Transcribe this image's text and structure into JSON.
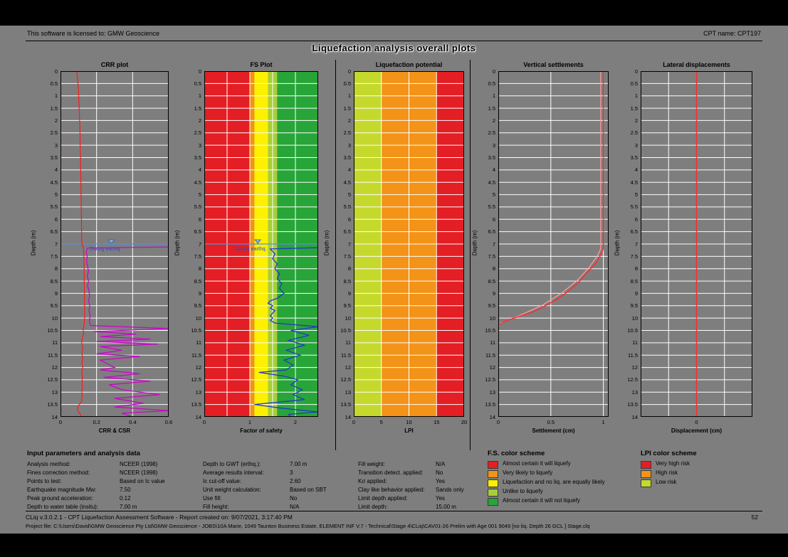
{
  "header": {
    "license_text": "This software is licensed to: GMW Geoscience",
    "cpt_name": "CPT name: CPT197",
    "title": "Liquefaction analysis overall plots"
  },
  "chart_data": [
    {
      "name": "crr-plot",
      "type": "line",
      "title": "CRR plot",
      "xlabel": "CRR & CSR",
      "ylabel": "Depth (m)",
      "xlim": [
        0,
        0.6
      ],
      "xticks": [
        0,
        0.2,
        0.4,
        0.6
      ],
      "xgrid": [
        0.2,
        0.4
      ],
      "ylim": [
        0,
        14
      ],
      "ytick_step": 0.5,
      "grid": "on",
      "water_table": {
        "depth": 7,
        "label": "During earthq.",
        "color": "#5b8fd4",
        "label_color": "#1d4ed0"
      },
      "series": [
        {
          "name": "CSR",
          "color": "#ff1a1a",
          "width": 1.2,
          "points": [
            [
              0,
              0.09
            ],
            [
              0.4,
              0.096
            ],
            [
              0.8,
              0.1
            ],
            [
              1.2,
              0.102
            ],
            [
              1.6,
              0.104
            ],
            [
              2,
              0.106
            ],
            [
              2.5,
              0.108
            ],
            [
              3,
              0.109
            ],
            [
              3.5,
              0.111
            ],
            [
              4,
              0.112
            ],
            [
              4.5,
              0.113
            ],
            [
              5,
              0.114
            ],
            [
              5.5,
              0.115
            ],
            [
              6,
              0.116
            ],
            [
              6.5,
              0.117
            ],
            [
              7,
              0.119
            ],
            [
              7.15,
              0.127
            ],
            [
              7.5,
              0.13
            ],
            [
              8,
              0.131
            ],
            [
              8.5,
              0.132
            ],
            [
              9,
              0.133
            ],
            [
              9.5,
              0.134
            ],
            [
              10,
              0.134
            ],
            [
              10.3,
              0.131
            ],
            [
              10.45,
              0.124
            ],
            [
              10.6,
              0.129
            ],
            [
              10.8,
              0.121
            ],
            [
              11,
              0.117
            ],
            [
              11.2,
              0.123
            ],
            [
              11.4,
              0.117
            ],
            [
              11.6,
              0.123
            ],
            [
              11.8,
              0.119
            ],
            [
              12,
              0.123
            ],
            [
              12.2,
              0.118
            ],
            [
              12.4,
              0.122
            ],
            [
              12.6,
              0.119
            ],
            [
              12.8,
              0.121
            ],
            [
              13,
              0.118
            ],
            [
              13.2,
              0.12
            ],
            [
              13.4,
              0.116
            ],
            [
              13.5,
              0.104
            ],
            [
              13.65,
              0.094
            ],
            [
              13.8,
              0.099
            ],
            [
              13.9,
              0.111
            ],
            [
              14,
              0.114
            ]
          ]
        },
        {
          "name": "CRR",
          "color": "#cc00cc",
          "width": 1.2,
          "points": [
            [
              7.12,
              0.6
            ],
            [
              7.16,
              0.15
            ],
            [
              7.3,
              0.142
            ],
            [
              7.5,
              0.148
            ],
            [
              7.7,
              0.144
            ],
            [
              7.9,
              0.15
            ],
            [
              8.1,
              0.155
            ],
            [
              8.3,
              0.148
            ],
            [
              8.5,
              0.156
            ],
            [
              8.7,
              0.15
            ],
            [
              8.9,
              0.158
            ],
            [
              9.1,
              0.162
            ],
            [
              9.3,
              0.155
            ],
            [
              9.5,
              0.163
            ],
            [
              9.7,
              0.158
            ],
            [
              9.9,
              0.165
            ],
            [
              10.1,
              0.16
            ],
            [
              10.3,
              0.165
            ],
            [
              10.42,
              0.6
            ],
            [
              10.55,
              0.185
            ],
            [
              10.65,
              0.42
            ],
            [
              10.75,
              0.22
            ],
            [
              10.85,
              0.5
            ],
            [
              10.95,
              0.2
            ],
            [
              11.05,
              0.54
            ],
            [
              11.15,
              0.22
            ],
            [
              11.3,
              0.34
            ],
            [
              11.45,
              0.2
            ],
            [
              11.55,
              0.44
            ],
            [
              11.7,
              0.22
            ],
            [
              11.85,
              0.26
            ],
            [
              12,
              0.3
            ],
            [
              12.1,
              0.22
            ],
            [
              12.25,
              0.44
            ],
            [
              12.4,
              0.24
            ],
            [
              12.55,
              0.5
            ],
            [
              12.7,
              0.27
            ],
            [
              12.9,
              0.34
            ],
            [
              13.1,
              0.55
            ],
            [
              13.25,
              0.3
            ],
            [
              13.45,
              0.46
            ],
            [
              13.6,
              0.3
            ],
            [
              13.75,
              0.6
            ],
            [
              13.85,
              0.34
            ],
            [
              14,
              0.4
            ]
          ]
        }
      ]
    },
    {
      "name": "fs-plot",
      "type": "line",
      "title": "FS Plot",
      "xlabel": "Factor of safety",
      "ylabel": "Depth (m)",
      "xlim": [
        0,
        2.5
      ],
      "xticks": [
        0,
        1,
        2
      ],
      "xgrid": [
        0.5,
        1,
        1.5,
        2
      ],
      "ylim": [
        0,
        14
      ],
      "ytick_step": 0.5,
      "grid": "on",
      "bands": [
        {
          "from": 0,
          "to": 1,
          "color": "#e31e24"
        },
        {
          "from": 1,
          "to": 1.1,
          "color": "#f39318"
        },
        {
          "from": 1.1,
          "to": 1.4,
          "color": "#fdf000"
        },
        {
          "from": 1.4,
          "to": 1.6,
          "color": "#a6ce39"
        },
        {
          "from": 1.6,
          "to": 2.5,
          "color": "#28a538"
        }
      ],
      "water_table": {
        "depth": 7,
        "label": "During earthq.",
        "color": "#5b8fd4",
        "label_color": "#1d4ed0"
      },
      "series": [
        {
          "name": "Factor of safety",
          "color": "#2438c8",
          "width": 1.3,
          "points": [
            [
              7.15,
              2.5
            ],
            [
              7.2,
              1.45
            ],
            [
              7.4,
              1.55
            ],
            [
              7.6,
              1.5
            ],
            [
              7.8,
              1.6
            ],
            [
              8,
              1.55
            ],
            [
              8.2,
              1.65
            ],
            [
              8.4,
              1.6
            ],
            [
              8.6,
              1.7
            ],
            [
              8.8,
              1.65
            ],
            [
              9,
              1.75
            ],
            [
              9.2,
              1.6
            ],
            [
              9.3,
              1.45
            ],
            [
              9.4,
              1.4
            ],
            [
              9.5,
              1.5
            ],
            [
              9.6,
              1.45
            ],
            [
              9.7,
              1.55
            ],
            [
              9.8,
              1.5
            ],
            [
              9.9,
              1.45
            ],
            [
              10,
              1.5
            ],
            [
              10.1,
              1.45
            ],
            [
              10.2,
              1.55
            ],
            [
              10.35,
              2.5
            ],
            [
              10.5,
              1.9
            ],
            [
              10.7,
              2.3
            ],
            [
              10.9,
              1.85
            ],
            [
              11.1,
              2.2
            ],
            [
              11.3,
              1.8
            ],
            [
              11.5,
              2.1
            ],
            [
              11.7,
              1.75
            ],
            [
              11.9,
              1.95
            ],
            [
              12.1,
              1.8
            ],
            [
              12.2,
              1.2
            ],
            [
              12.35,
              1.75
            ],
            [
              12.5,
              2.05
            ],
            [
              12.7,
              1.9
            ],
            [
              12.9,
              2.15
            ],
            [
              13.1,
              1.95
            ],
            [
              13.3,
              2.2
            ],
            [
              13.5,
              1.1
            ],
            [
              13.65,
              1.7
            ],
            [
              13.8,
              2.5
            ],
            [
              13.9,
              1.85
            ],
            [
              14,
              1.9
            ]
          ]
        }
      ]
    },
    {
      "name": "liquefaction-potential",
      "type": "line",
      "title": "Liquefaction potential",
      "xlabel": "LPI",
      "ylabel": "Depth (m)",
      "xlim": [
        0,
        20
      ],
      "xticks": [
        0,
        5,
        10,
        15,
        20
      ],
      "xgrid": [
        5,
        10,
        15
      ],
      "ylim": [
        0,
        14
      ],
      "ytick_step": 0.5,
      "grid": "on",
      "bands": [
        {
          "from": 0,
          "to": 5,
          "color": "#c5d92d"
        },
        {
          "from": 5,
          "to": 15,
          "color": "#f39318"
        },
        {
          "from": 15,
          "to": 20,
          "color": "#e31e24"
        }
      ],
      "series": []
    },
    {
      "name": "vertical-settlements",
      "type": "line",
      "title": "Vertical settlements",
      "xlabel": "Settlement (cm)",
      "ylabel": "Depth (m)",
      "xlim": [
        0,
        1.05
      ],
      "xticks": [
        0,
        0.5,
        1
      ],
      "xgrid": [
        0.5,
        1
      ],
      "ylim": [
        0,
        14
      ],
      "ytick_step": 0.5,
      "grid": "on",
      "series": [
        {
          "name": "Settlement envelope",
          "color": "#ff9d9d",
          "width": 1.2,
          "points": [
            [
              0,
              0.975
            ],
            [
              7.2,
              0.975
            ],
            [
              7.5,
              0.94
            ],
            [
              8,
              0.855
            ],
            [
              8.5,
              0.745
            ],
            [
              9,
              0.6
            ],
            [
              9.5,
              0.41
            ],
            [
              9.9,
              0.2
            ],
            [
              10.2,
              0.02
            ],
            [
              10.35,
              0
            ],
            [
              14,
              0
            ]
          ]
        },
        {
          "name": "Settlement",
          "color": "#ff2a2a",
          "width": 1.4,
          "points": [
            [
              0,
              1
            ],
            [
              7.2,
              1
            ],
            [
              7.35,
              0.985
            ],
            [
              7.55,
              0.96
            ],
            [
              7.75,
              0.935
            ],
            [
              8,
              0.88
            ],
            [
              8.25,
              0.825
            ],
            [
              8.5,
              0.775
            ],
            [
              8.75,
              0.71
            ],
            [
              9,
              0.64
            ],
            [
              9.25,
              0.555
            ],
            [
              9.5,
              0.45
            ],
            [
              9.75,
              0.33
            ],
            [
              10,
              0.15
            ],
            [
              10.15,
              0.05
            ],
            [
              10.3,
              0
            ],
            [
              14,
              0
            ]
          ]
        }
      ]
    },
    {
      "name": "lateral-displacements",
      "type": "line",
      "title": "Lateral displacements",
      "xlabel": "Displacement (cm)",
      "ylabel": "Depth (m)",
      "xlim": [
        -2,
        2
      ],
      "xticks": [
        0
      ],
      "xgrid": [
        -1,
        0,
        1
      ],
      "ylim": [
        0,
        14
      ],
      "ytick_step": 0.5,
      "grid": "on",
      "series": [
        {
          "name": "Displacement",
          "color": "#ff2a2a",
          "width": 1.4,
          "points": [
            [
              0,
              0
            ],
            [
              14,
              0
            ]
          ]
        }
      ]
    }
  ],
  "input_parameters": {
    "heading": "Input parameters and analysis data",
    "columns": [
      [
        {
          "label": "Analysis method:",
          "value": "NCEER (1998)"
        },
        {
          "label": "Fines correction method:",
          "value": "NCEER (1998)"
        },
        {
          "label": "Points to test:",
          "value": "Based on Ic value"
        },
        {
          "label": "Earthquake magnitude Mw:",
          "value": "7.50"
        },
        {
          "label": "Peak ground acceleration:",
          "value": "0.12"
        },
        {
          "label": "Depth to water table (insitu):",
          "value": "7.00 m"
        }
      ],
      [
        {
          "label": "Depth to GWT (erthq.):",
          "value": "7.00 m"
        },
        {
          "label": "Average results interval:",
          "value": "3"
        },
        {
          "label": "Ic cut-off value:",
          "value": "2.60"
        },
        {
          "label": "Unit weight calculation:",
          "value": "Based on SBT"
        },
        {
          "label": "Use fill:",
          "value": "No"
        },
        {
          "label": "Fill height:",
          "value": "N/A"
        }
      ],
      [
        {
          "label": "Fill weight:",
          "value": "N/A"
        },
        {
          "label": "Transition detect. applied:",
          "value": "No"
        },
        {
          "label": "Kσ applied:",
          "value": "Yes"
        },
        {
          "label": "Clay like behavior applied:",
          "value": "Sands only"
        },
        {
          "label": "Limit depth applied:",
          "value": "Yes"
        },
        {
          "label": "Limit depth:",
          "value": "15.00 m"
        }
      ]
    ]
  },
  "fs_legend": {
    "heading": "F.S. color scheme",
    "items": [
      {
        "color": "#e31e24",
        "label": "Almost certain it will liquefy"
      },
      {
        "color": "#f39318",
        "label": "Very likely to liquefy"
      },
      {
        "color": "#fdf000",
        "label": "Liquefaction and no liq. are equally likely"
      },
      {
        "color": "#a6ce39",
        "label": "Unlike to liquefy"
      },
      {
        "color": "#28a538",
        "label": "Almost certain it will not liquefy"
      }
    ]
  },
  "lpi_legend": {
    "heading": "LPI color scheme",
    "items": [
      {
        "color": "#e31e24",
        "label": "Very high risk"
      },
      {
        "color": "#f39318",
        "label": "High risk"
      },
      {
        "color": "#c5d92d",
        "label": "Low risk"
      }
    ]
  },
  "footer": {
    "line1": "CLiq v.3.0.2.1 - CPT Liquefaction Assessment Software - Report created on: 9/07/2021, 3:17:40 PM",
    "page_number": "52",
    "line2": "Project file: C:\\Users\\David\\GMW Geoscience Pty Ltd\\GMW Geoscience - JOBS\\10A Marie, 1049 Taunton Business Estate, ELEMENT INF V.7 - Technical\\Stage 4\\CLiq\\CAV01-26 Prelim with Age 001 9049 [no liq. Depth 26 GCL ] Stage.clq"
  }
}
